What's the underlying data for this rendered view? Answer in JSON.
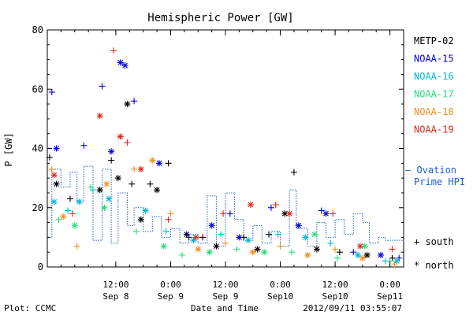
{
  "footer": {
    "plot_by": "Plot: CCMC",
    "timestamp": "2012/09/11 03:55:07"
  },
  "chart_data": {
    "type": "scatter",
    "title": "Hemispheric Power [GW]",
    "xlabel": "Date and Time",
    "ylabel": "P [GW]",
    "ylim": [
      0,
      80
    ],
    "yticks": [
      0,
      20,
      40,
      60,
      80
    ],
    "xlim": [
      "2012-09-07T21:00",
      "2012-09-11T03:00"
    ],
    "xticks": [
      {
        "t": "2012-09-08T12:00",
        "line1": "12:00",
        "line2": "Sep 8"
      },
      {
        "t": "2012-09-09T00:00",
        "line1": "0:00",
        "line2": "Sep 9"
      },
      {
        "t": "2012-09-09T12:00",
        "line1": "12:00",
        "line2": "Sep 9"
      },
      {
        "t": "2012-09-10T00:00",
        "line1": "0:00",
        "line2": "Sep10"
      },
      {
        "t": "2012-09-10T12:00",
        "line1": "12:00",
        "line2": "Sep10"
      },
      {
        "t": "2012-09-11T00:00",
        "line1": "0:00",
        "line2": "Sep11"
      }
    ],
    "grid": false,
    "legend_position": "right",
    "marker_legend": [
      {
        "symbol": "+",
        "label": "south"
      },
      {
        "symbol": "*",
        "label": "north"
      }
    ],
    "series": [
      {
        "name": "METP-02",
        "color": "#000000",
        "points": [
          {
            "t": "2012-09-07T21:30",
            "y": 37,
            "m": "+"
          },
          {
            "t": "2012-09-07T23:00",
            "y": 28,
            "m": "*"
          },
          {
            "t": "2012-09-08T02:00",
            "y": 23,
            "m": "+"
          },
          {
            "t": "2012-09-08T08:30",
            "y": 26,
            "m": "*"
          },
          {
            "t": "2012-09-08T11:00",
            "y": 36,
            "m": "+"
          },
          {
            "t": "2012-09-08T12:30",
            "y": 30,
            "m": "*"
          },
          {
            "t": "2012-09-08T14:30",
            "y": 55,
            "m": "*"
          },
          {
            "t": "2012-09-08T15:30",
            "y": 28,
            "m": "+"
          },
          {
            "t": "2012-09-08T17:30",
            "y": 16,
            "m": "*"
          },
          {
            "t": "2012-09-08T19:30",
            "y": 28,
            "m": "+"
          },
          {
            "t": "2012-09-08T21:00",
            "y": 26,
            "m": "*"
          },
          {
            "t": "2012-09-08T23:30",
            "y": 35,
            "m": "+"
          },
          {
            "t": "2012-09-09T03:30",
            "y": 11,
            "m": "*"
          },
          {
            "t": "2012-09-09T07:00",
            "y": 10,
            "m": "+"
          },
          {
            "t": "2012-09-09T10:00",
            "y": 7,
            "m": "*"
          },
          {
            "t": "2012-09-09T16:00",
            "y": 10,
            "m": "+"
          },
          {
            "t": "2012-09-09T19:00",
            "y": 6,
            "m": "*"
          },
          {
            "t": "2012-09-09T21:30",
            "y": 11,
            "m": "+"
          },
          {
            "t": "2012-09-10T01:00",
            "y": 18,
            "m": "*"
          },
          {
            "t": "2012-09-10T03:00",
            "y": 32,
            "m": "+"
          },
          {
            "t": "2012-09-10T08:00",
            "y": 6,
            "m": "*"
          },
          {
            "t": "2012-09-10T13:00",
            "y": 5,
            "m": "+"
          },
          {
            "t": "2012-09-10T19:00",
            "y": 4,
            "m": "*"
          },
          {
            "t": "2012-09-11T00:30",
            "y": 3,
            "m": "+"
          }
        ]
      },
      {
        "name": "NOAA-15",
        "color": "#0000dd",
        "points": [
          {
            "t": "2012-09-07T22:00",
            "y": 59,
            "m": "+"
          },
          {
            "t": "2012-09-07T23:00",
            "y": 40,
            "m": "*"
          },
          {
            "t": "2012-09-08T05:00",
            "y": 41,
            "m": "+"
          },
          {
            "t": "2012-09-08T09:00",
            "y": 61,
            "m": "+"
          },
          {
            "t": "2012-09-08T11:00",
            "y": 39,
            "m": "*"
          },
          {
            "t": "2012-09-08T13:00",
            "y": 69,
            "m": "*"
          },
          {
            "t": "2012-09-08T14:00",
            "y": 68,
            "m": "*"
          },
          {
            "t": "2012-09-08T16:00",
            "y": 56,
            "m": "+"
          },
          {
            "t": "2012-09-08T21:30",
            "y": 35,
            "m": "*"
          },
          {
            "t": "2012-09-09T04:00",
            "y": 10,
            "m": "+"
          },
          {
            "t": "2012-09-09T09:00",
            "y": 14,
            "m": "*"
          },
          {
            "t": "2012-09-09T13:00",
            "y": 18,
            "m": "+"
          },
          {
            "t": "2012-09-09T15:00",
            "y": 10,
            "m": "*"
          },
          {
            "t": "2012-09-09T22:00",
            "y": 20,
            "m": "+"
          },
          {
            "t": "2012-09-10T04:00",
            "y": 14,
            "m": "*"
          },
          {
            "t": "2012-09-10T09:00",
            "y": 19,
            "m": "+"
          },
          {
            "t": "2012-09-10T10:00",
            "y": 18,
            "m": "*"
          },
          {
            "t": "2012-09-10T16:00",
            "y": 5,
            "m": "+"
          },
          {
            "t": "2012-09-10T22:00",
            "y": 4,
            "m": "*"
          },
          {
            "t": "2012-09-11T02:00",
            "y": 3,
            "m": "+"
          }
        ]
      },
      {
        "name": "NOAA-16",
        "color": "#00b8d8",
        "points": [
          {
            "t": "2012-09-07T22:30",
            "y": 22,
            "m": "*"
          },
          {
            "t": "2012-09-08T01:30",
            "y": 19,
            "m": "+"
          },
          {
            "t": "2012-09-08T04:00",
            "y": 22,
            "m": "*"
          },
          {
            "t": "2012-09-08T07:00",
            "y": 26,
            "m": "+"
          },
          {
            "t": "2012-09-08T10:30",
            "y": 23,
            "m": "*"
          },
          {
            "t": "2012-09-08T18:30",
            "y": 19,
            "m": "*"
          },
          {
            "t": "2012-09-08T23:00",
            "y": 12,
            "m": "+"
          },
          {
            "t": "2012-09-09T05:00",
            "y": 9,
            "m": "*"
          },
          {
            "t": "2012-09-09T11:00",
            "y": 11,
            "m": "+"
          },
          {
            "t": "2012-09-09T17:00",
            "y": 9,
            "m": "*"
          },
          {
            "t": "2012-09-09T23:30",
            "y": 11,
            "m": "+"
          },
          {
            "t": "2012-09-10T05:30",
            "y": 10,
            "m": "*"
          },
          {
            "t": "2012-09-10T11:00",
            "y": 8,
            "m": "+"
          },
          {
            "t": "2012-09-10T17:00",
            "y": 4,
            "m": "*"
          },
          {
            "t": "2012-09-10T23:00",
            "y": 2,
            "m": "+"
          },
          {
            "t": "2012-09-11T01:30",
            "y": 2,
            "m": "*"
          }
        ]
      },
      {
        "name": "NOAA-17",
        "color": "#22e07a",
        "points": [
          {
            "t": "2012-09-07T23:30",
            "y": 16,
            "m": "+"
          },
          {
            "t": "2012-09-08T03:00",
            "y": 14,
            "m": "*"
          },
          {
            "t": "2012-09-08T06:30",
            "y": 27,
            "m": "+"
          },
          {
            "t": "2012-09-08T09:30",
            "y": 20,
            "m": "*"
          },
          {
            "t": "2012-09-08T16:30",
            "y": 12,
            "m": "+"
          },
          {
            "t": "2012-09-08T22:30",
            "y": 7,
            "m": "*"
          },
          {
            "t": "2012-09-09T02:30",
            "y": 4,
            "m": "+"
          },
          {
            "t": "2012-09-09T08:30",
            "y": 5,
            "m": "*"
          },
          {
            "t": "2012-09-09T14:30",
            "y": 6,
            "m": "+"
          },
          {
            "t": "2012-09-09T20:30",
            "y": 5,
            "m": "*"
          },
          {
            "t": "2012-09-10T02:30",
            "y": 5,
            "m": "+"
          },
          {
            "t": "2012-09-10T07:30",
            "y": 11,
            "m": "*"
          },
          {
            "t": "2012-09-10T12:30",
            "y": 3,
            "m": "+"
          },
          {
            "t": "2012-09-10T18:30",
            "y": 7,
            "m": "*"
          },
          {
            "t": "2012-09-11T00:00",
            "y": 2,
            "m": "+"
          }
        ]
      },
      {
        "name": "NOAA-18",
        "color": "#f09020",
        "points": [
          {
            "t": "2012-09-07T22:00",
            "y": 33,
            "m": "+"
          },
          {
            "t": "2012-09-08T00:30",
            "y": 17,
            "m": "*"
          },
          {
            "t": "2012-09-08T03:30",
            "y": 7,
            "m": "+"
          },
          {
            "t": "2012-09-08T10:00",
            "y": 28,
            "m": "*"
          },
          {
            "t": "2012-09-08T16:00",
            "y": 33,
            "m": "+"
          },
          {
            "t": "2012-09-08T20:00",
            "y": 36,
            "m": "*"
          },
          {
            "t": "2012-09-09T00:00",
            "y": 18,
            "m": "+"
          },
          {
            "t": "2012-09-09T06:00",
            "y": 6,
            "m": "*"
          },
          {
            "t": "2012-09-09T12:00",
            "y": 8,
            "m": "+"
          },
          {
            "t": "2012-09-09T18:00",
            "y": 5,
            "m": "*"
          },
          {
            "t": "2012-09-10T00:00",
            "y": 7,
            "m": "+"
          },
          {
            "t": "2012-09-10T06:00",
            "y": 4,
            "m": "*"
          },
          {
            "t": "2012-09-10T12:00",
            "y": 6,
            "m": "+"
          },
          {
            "t": "2012-09-10T18:00",
            "y": 3,
            "m": "*"
          },
          {
            "t": "2012-09-11T01:00",
            "y": 1,
            "m": "+"
          }
        ]
      },
      {
        "name": "NOAA-19",
        "color": "#e02818",
        "points": [
          {
            "t": "2012-09-07T22:30",
            "y": 31,
            "m": "*"
          },
          {
            "t": "2012-09-08T02:30",
            "y": 18,
            "m": "+"
          },
          {
            "t": "2012-09-08T08:30",
            "y": 51,
            "m": "*"
          },
          {
            "t": "2012-09-08T11:30",
            "y": 73,
            "m": "+"
          },
          {
            "t": "2012-09-08T13:00",
            "y": 44,
            "m": "*"
          },
          {
            "t": "2012-09-08T14:30",
            "y": 42,
            "m": "+"
          },
          {
            "t": "2012-09-08T17:30",
            "y": 33,
            "m": "*"
          },
          {
            "t": "2012-09-08T23:30",
            "y": 16,
            "m": "+"
          },
          {
            "t": "2012-09-09T05:30",
            "y": 10,
            "m": "*"
          },
          {
            "t": "2012-09-09T11:30",
            "y": 18,
            "m": "+"
          },
          {
            "t": "2012-09-09T17:30",
            "y": 21,
            "m": "*"
          },
          {
            "t": "2012-09-09T23:00",
            "y": 21,
            "m": "+"
          },
          {
            "t": "2012-09-10T02:00",
            "y": 18,
            "m": "*"
          },
          {
            "t": "2012-09-10T11:30",
            "y": 18,
            "m": "+"
          },
          {
            "t": "2012-09-10T17:30",
            "y": 7,
            "m": "*"
          },
          {
            "t": "2012-09-11T00:30",
            "y": 6,
            "m": "+"
          }
        ]
      }
    ],
    "ovation": {
      "label_line1": "— Ovation",
      "label_line2": "Prime HPI",
      "color": "#2060d0",
      "steps": [
        {
          "t": "2012-09-07T21:00",
          "y": 10
        },
        {
          "t": "2012-09-07T22:00",
          "y": 33
        },
        {
          "t": "2012-09-08T00:00",
          "y": 27
        },
        {
          "t": "2012-09-08T02:00",
          "y": 32
        },
        {
          "t": "2012-09-08T03:30",
          "y": 22
        },
        {
          "t": "2012-09-08T05:00",
          "y": 34
        },
        {
          "t": "2012-09-08T07:00",
          "y": 9
        },
        {
          "t": "2012-09-08T09:00",
          "y": 33
        },
        {
          "t": "2012-09-08T11:00",
          "y": 8
        },
        {
          "t": "2012-09-08T12:30",
          "y": 25
        },
        {
          "t": "2012-09-08T14:30",
          "y": 14
        },
        {
          "t": "2012-09-08T16:00",
          "y": 20
        },
        {
          "t": "2012-09-08T18:00",
          "y": 12
        },
        {
          "t": "2012-09-08T20:00",
          "y": 17
        },
        {
          "t": "2012-09-08T22:00",
          "y": 10
        },
        {
          "t": "2012-09-09T00:00",
          "y": 13
        },
        {
          "t": "2012-09-09T02:00",
          "y": 8
        },
        {
          "t": "2012-09-09T04:00",
          "y": 11
        },
        {
          "t": "2012-09-09T06:00",
          "y": 8
        },
        {
          "t": "2012-09-09T08:00",
          "y": 24
        },
        {
          "t": "2012-09-09T10:00",
          "y": 7
        },
        {
          "t": "2012-09-09T12:00",
          "y": 25
        },
        {
          "t": "2012-09-09T14:00",
          "y": 16
        },
        {
          "t": "2012-09-09T16:00",
          "y": 9
        },
        {
          "t": "2012-09-09T18:00",
          "y": 14
        },
        {
          "t": "2012-09-09T20:00",
          "y": 8
        },
        {
          "t": "2012-09-09T22:00",
          "y": 12
        },
        {
          "t": "2012-09-10T00:00",
          "y": 7
        },
        {
          "t": "2012-09-10T02:00",
          "y": 26
        },
        {
          "t": "2012-09-10T03:30",
          "y": 13
        },
        {
          "t": "2012-09-10T06:00",
          "y": 7
        },
        {
          "t": "2012-09-10T08:00",
          "y": 15
        },
        {
          "t": "2012-09-10T10:00",
          "y": 10
        },
        {
          "t": "2012-09-10T12:00",
          "y": 16
        },
        {
          "t": "2012-09-10T14:00",
          "y": 11
        },
        {
          "t": "2012-09-10T16:00",
          "y": 18
        },
        {
          "t": "2012-09-10T18:00",
          "y": 15
        },
        {
          "t": "2012-09-10T19:30",
          "y": 8
        },
        {
          "t": "2012-09-10T21:30",
          "y": 10
        },
        {
          "t": "2012-09-10T23:00",
          "y": 9
        },
        {
          "t": "2012-09-11T03:00",
          "y": 9
        }
      ]
    }
  }
}
